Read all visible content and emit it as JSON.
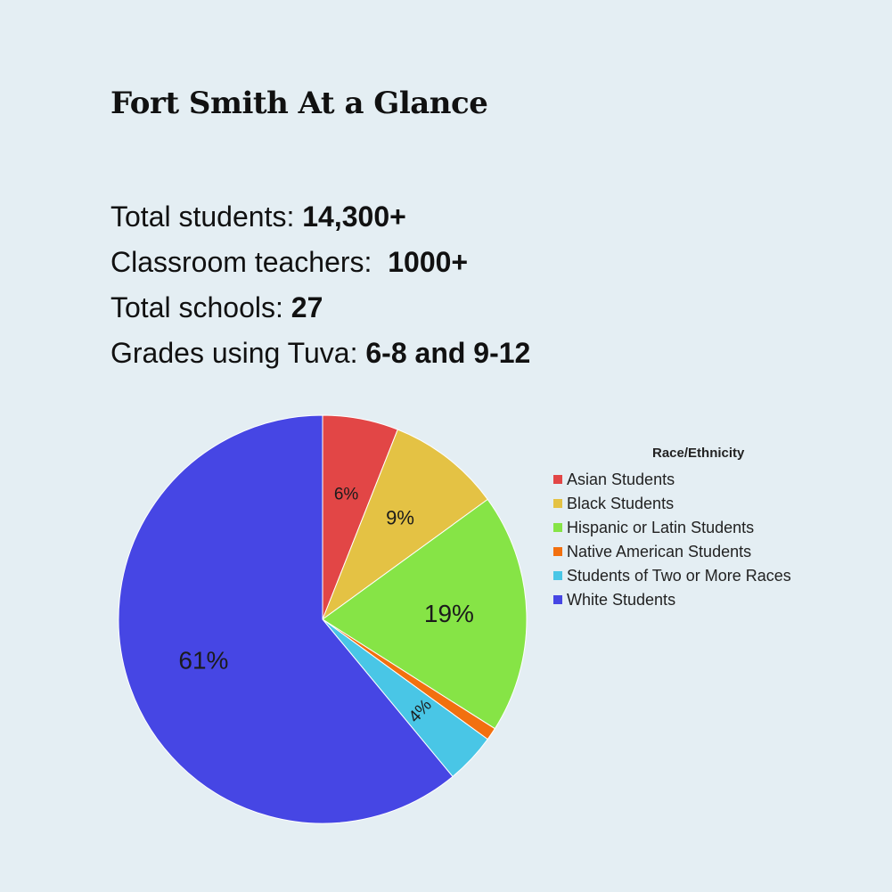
{
  "page": {
    "title": "Fort Smith At a Glance",
    "stats": [
      {
        "label": "Total students: ",
        "value": "14,300+"
      },
      {
        "label": "Classroom teachers:  ",
        "value": "1000+"
      },
      {
        "label": "Total schools: ",
        "value": "27"
      },
      {
        "label": "Grades using Tuva: ",
        "value": "6-8 and 9-12"
      }
    ]
  },
  "chart_data": {
    "type": "pie",
    "legend_title": "Race/Ethnicity",
    "legend_position": "right",
    "start_angle": "top",
    "direction": "clockwise",
    "slices": [
      {
        "name": "Asian Students",
        "value": 6,
        "label": "6%",
        "color": "#e24646"
      },
      {
        "name": "Black Students",
        "value": 9,
        "label": "9%",
        "color": "#e4c244"
      },
      {
        "name": "Hispanic or Latin Students",
        "value": 19,
        "label": "19%",
        "color": "#86e446"
      },
      {
        "name": "Native American Students",
        "value": 1,
        "label": "",
        "color": "#f2700f"
      },
      {
        "name": "Students of Two or More Races",
        "value": 4,
        "label": "4%",
        "color": "#49c6e6"
      },
      {
        "name": "White Students",
        "value": 61,
        "label": "61%",
        "color": "#4646e4"
      }
    ]
  }
}
